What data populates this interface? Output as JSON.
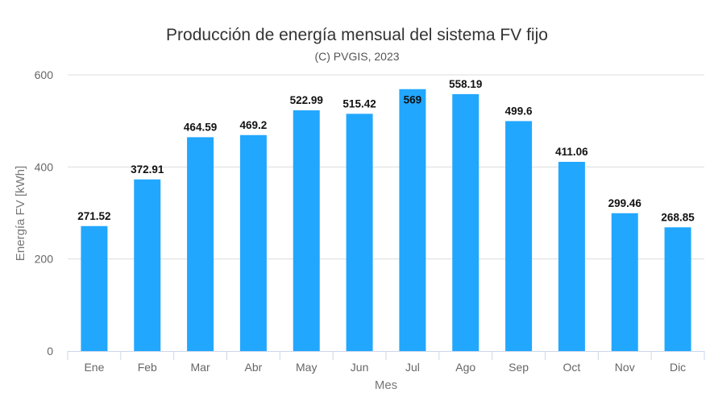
{
  "chart_data": {
    "type": "bar",
    "title": "Producción de energía mensual del sistema FV fijo",
    "subtitle": "(C) PVGIS, 2023",
    "xlabel": "Mes",
    "ylabel": "Energía FV [kWh]",
    "categories": [
      "Ene",
      "Feb",
      "Mar",
      "Abr",
      "May",
      "Jun",
      "Jul",
      "Ago",
      "Sep",
      "Oct",
      "Nov",
      "Dic"
    ],
    "values": [
      271.52,
      372.91,
      464.59,
      469.2,
      522.99,
      515.42,
      569,
      558.19,
      499.6,
      411.06,
      299.46,
      268.85
    ],
    "data_labels": [
      "271.52",
      "372.91",
      "464.59",
      "469.2",
      "522.99",
      "515.42",
      "569",
      "558.19",
      "499.6",
      "411.06",
      "299.46",
      "268.85"
    ],
    "ylim": [
      0,
      600
    ],
    "yticks": [
      "0",
      "200",
      "400",
      "600"
    ],
    "grid": true,
    "legend": "none",
    "bar_color": "#22a7fe"
  }
}
